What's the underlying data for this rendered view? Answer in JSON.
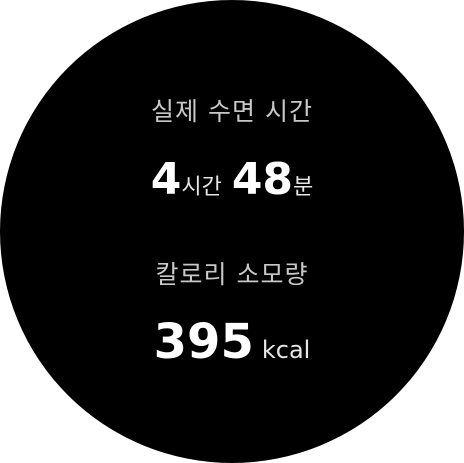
{
  "sleep": {
    "label": "실제 수면 시간",
    "hours": "4",
    "hours_unit": "시간",
    "minutes": "48",
    "minutes_unit": "분"
  },
  "calories": {
    "label": "칼로리 소모량",
    "value": "395",
    "unit": "kcal"
  },
  "colors": {
    "background": "#000000",
    "label": "#c9c9c9",
    "value": "#ffffff"
  }
}
